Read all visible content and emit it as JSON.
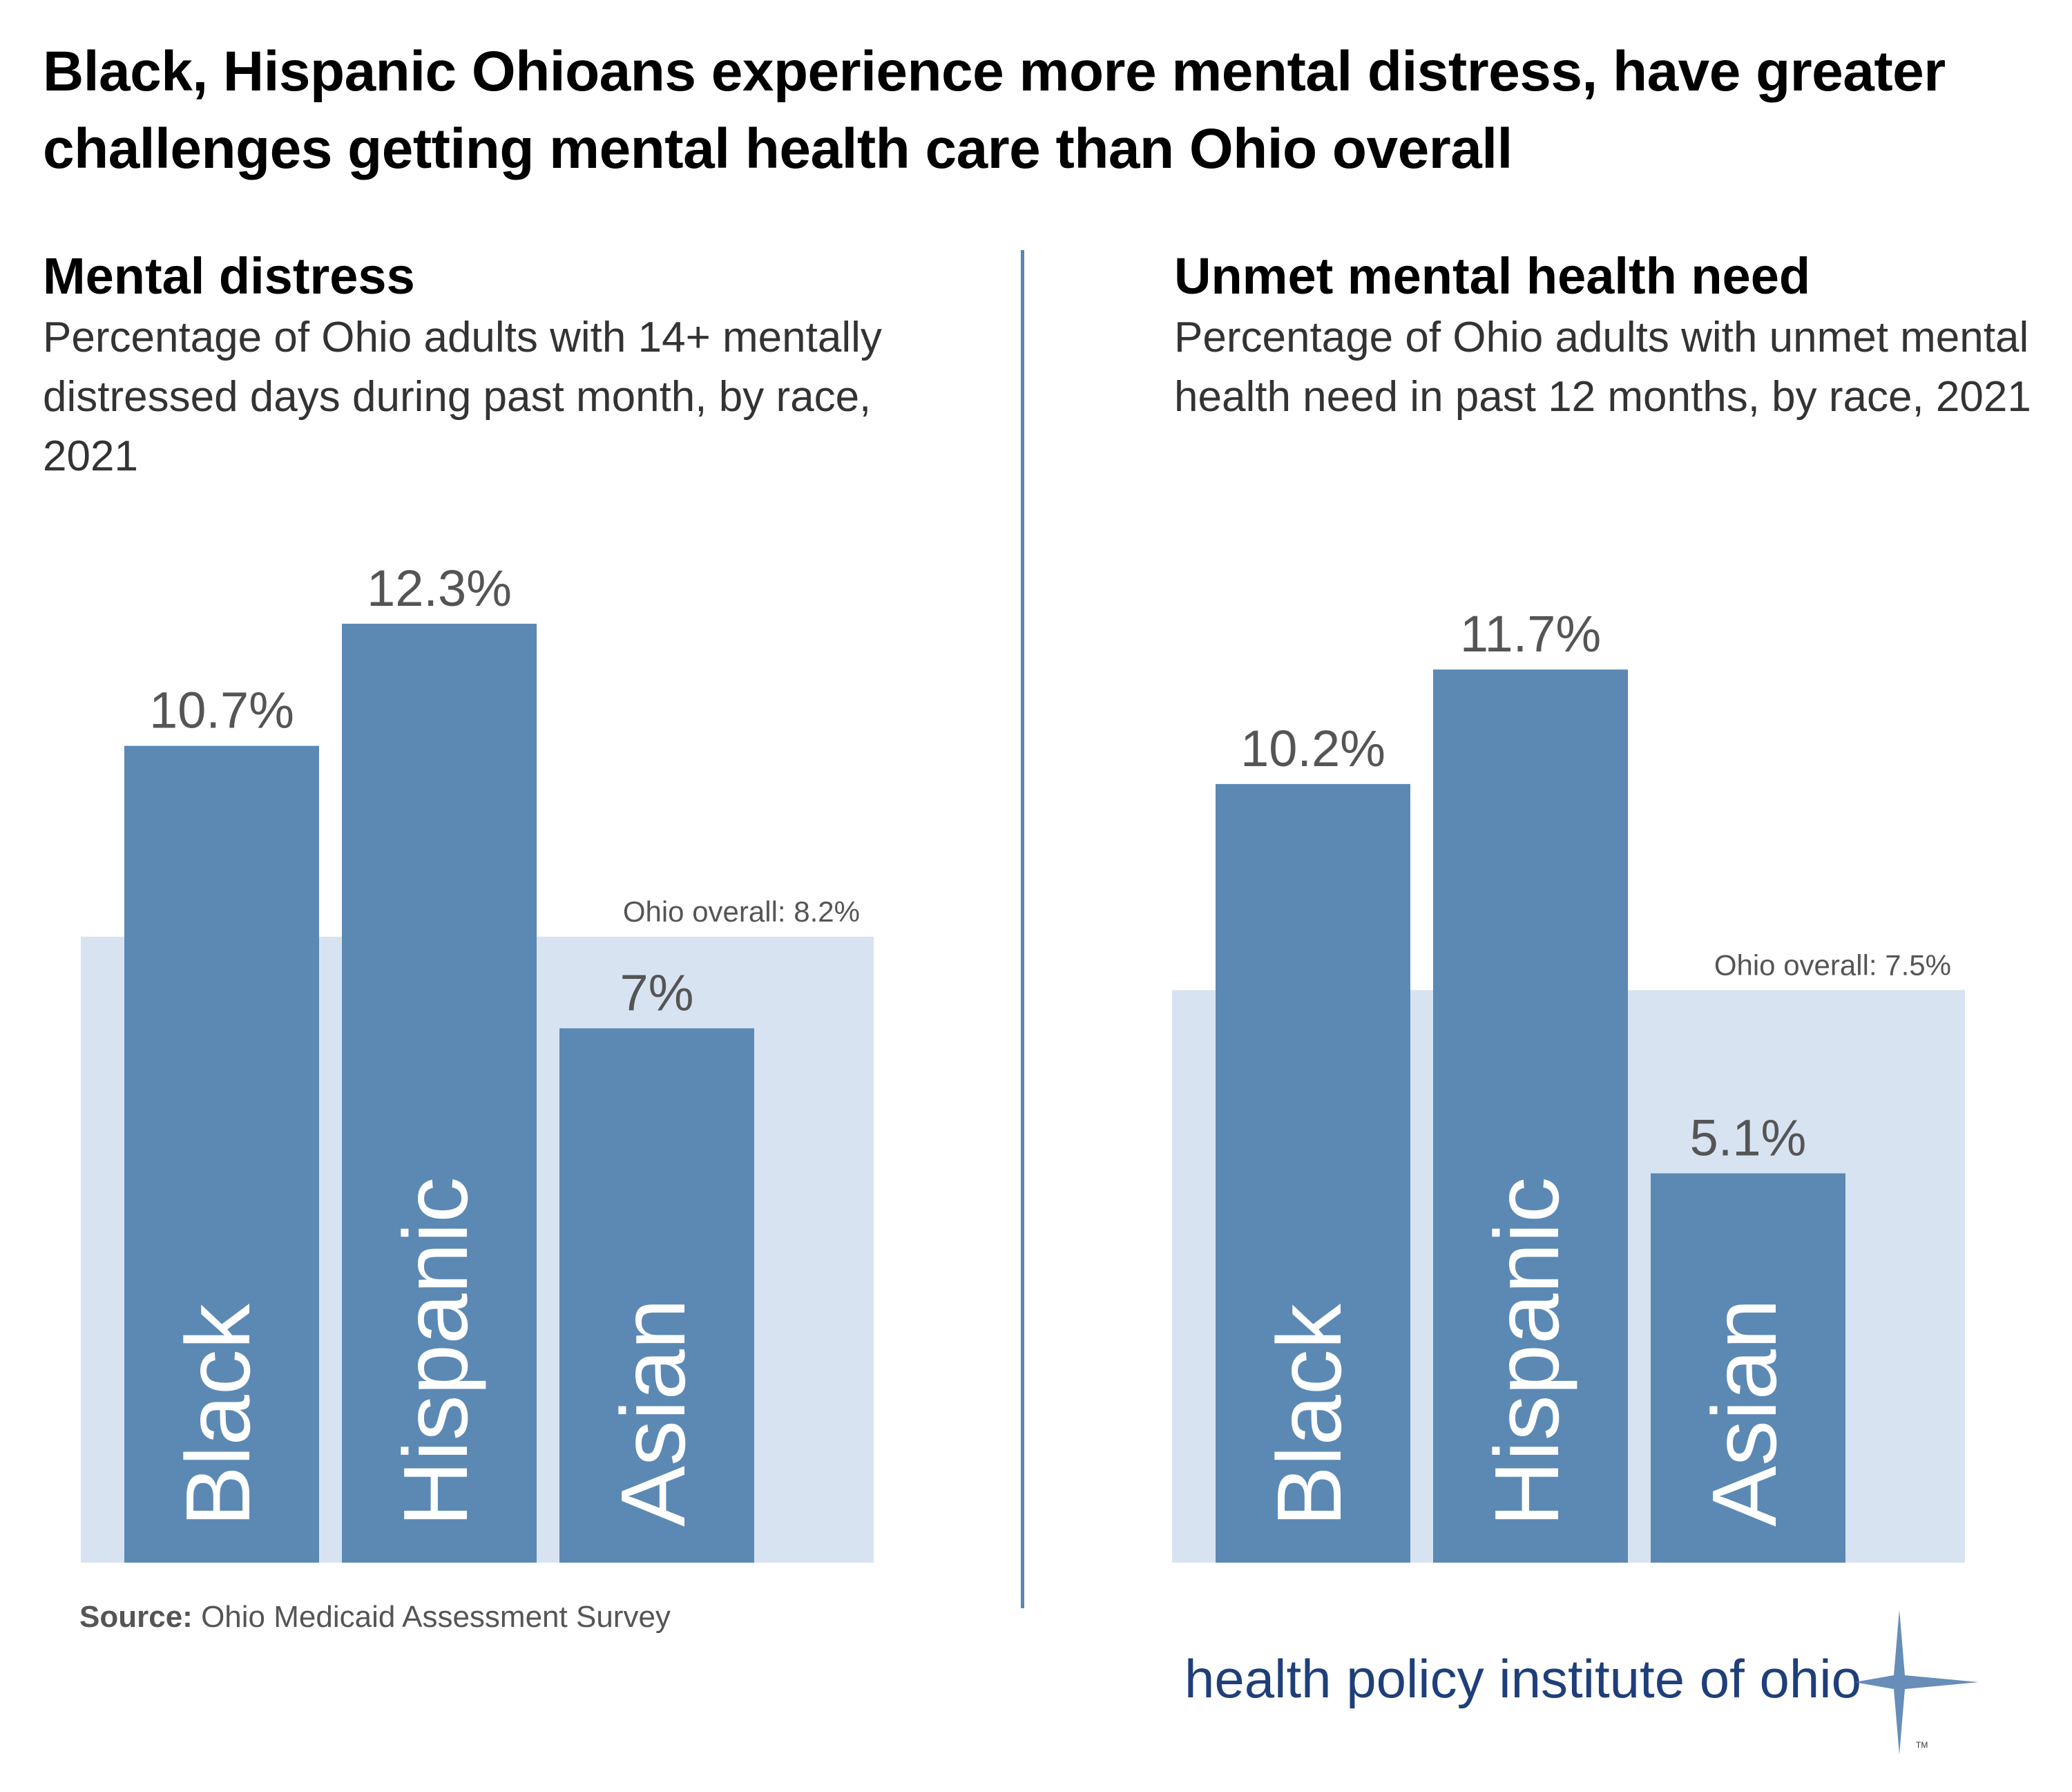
{
  "title": "Black, Hispanic Ohioans experience more mental distress, have greater challenges getting mental health care than Ohio overall",
  "colors": {
    "bar": "#5b89b4",
    "overall_band": "#d8e3f2",
    "divider": "#5a86b2",
    "brand": "#1e3f7a"
  },
  "chart_data": [
    {
      "type": "bar",
      "title": "Mental distress",
      "subtitle": "Percentage of Ohio adults with 14+ mentally distressed days during past month, by race, 2021",
      "categories": [
        "Black",
        "Hispanic",
        "Asian"
      ],
      "values": [
        10.7,
        12.3,
        7
      ],
      "value_labels": [
        "10.7%",
        "12.3%",
        "7%"
      ],
      "reference": {
        "label": "Ohio overall: 8.2%",
        "value": 8.2
      },
      "ylim": [
        0,
        14
      ]
    },
    {
      "type": "bar",
      "title": "Unmet mental health need",
      "subtitle": "Percentage of Ohio adults with unmet mental health need in past 12 months, by race, 2021",
      "categories": [
        "Black",
        "Hispanic",
        "Asian"
      ],
      "values": [
        10.2,
        11.7,
        5.1
      ],
      "value_labels": [
        "10.2%",
        "11.7%",
        "5.1%"
      ],
      "reference": {
        "label": "Ohio overall: 7.5%",
        "value": 7.5
      },
      "ylim": [
        0,
        14
      ]
    }
  ],
  "source": {
    "label": "Source:",
    "text": "Ohio Medicaid Assessment Survey"
  },
  "brand": {
    "text": "health policy institute of ohio",
    "logo_icon": "compass-star-icon"
  }
}
